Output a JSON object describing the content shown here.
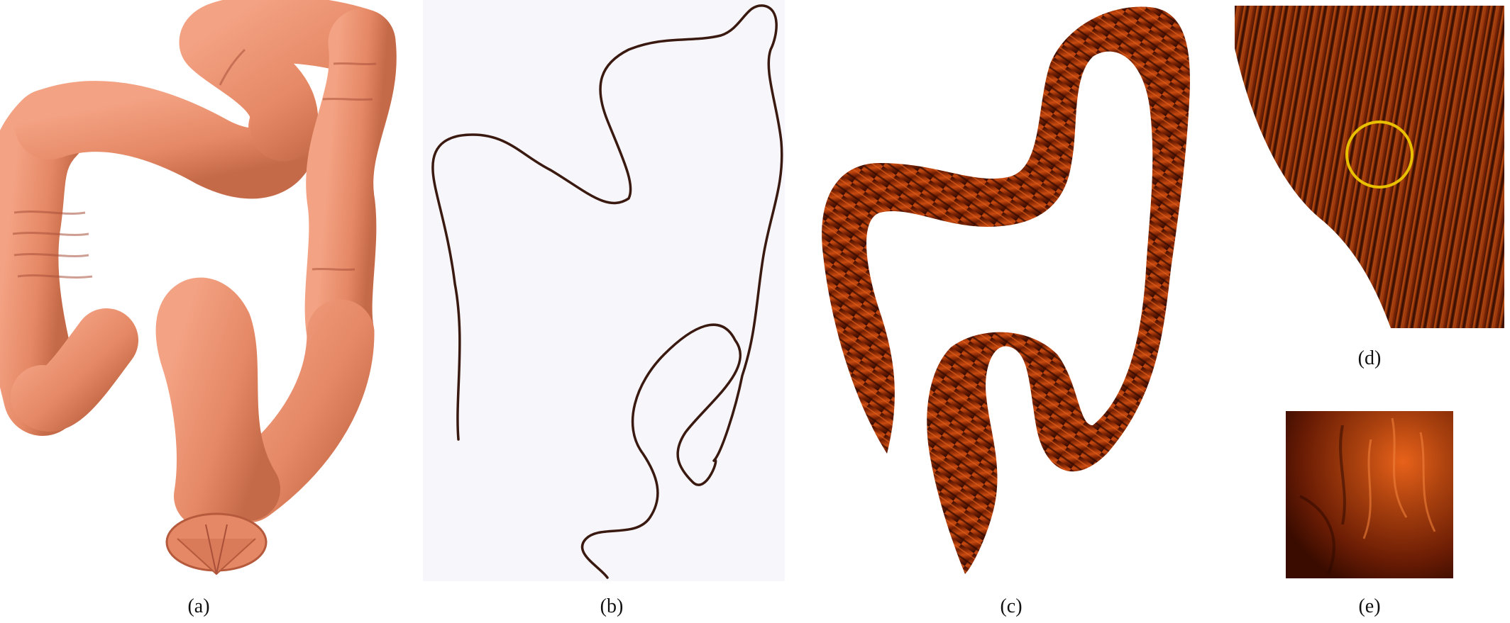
{
  "figure": {
    "panels": [
      {
        "id": "a",
        "caption": "(a)",
        "content": "3D rendered colon surface model"
      },
      {
        "id": "b",
        "caption": "(b)",
        "content": "Colon centerline curve"
      },
      {
        "id": "c",
        "caption": "(c)",
        "content": "Flattened colon surface texture"
      },
      {
        "id": "d",
        "caption": "(d)",
        "content": "Zoomed region with circled area"
      },
      {
        "id": "e",
        "caption": "(e)",
        "content": "Magnified detail of circled region"
      }
    ],
    "colors": {
      "colon_surface": "#E58865",
      "colon_shadow": "#B55A3C",
      "centerline": "#3a1a10",
      "panel_b_bg": "#F7F6FA",
      "texture_dark": "#2a0800",
      "texture_mid": "#8a2a05",
      "texture_bright": "#E8621A",
      "highlight_circle": "#E8C000"
    }
  }
}
